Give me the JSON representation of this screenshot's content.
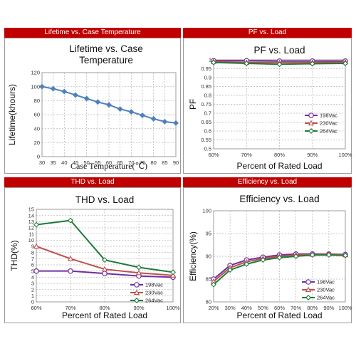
{
  "banners": {
    "lifetime": "Lifetime vs. Case Temperature",
    "pf": "PF vs. Load",
    "thd": "THD vs. Load",
    "efficiency": "Efficiency vs. Load"
  },
  "colors": {
    "banner": "#c00000",
    "s198": "#7030a0",
    "s230": "#c0504d",
    "s264": "#1e7b3a",
    "lifetime": "#4f81bd"
  },
  "chart_data": [
    {
      "id": "lifetime",
      "type": "line",
      "title_lines": [
        "Lifetime vs. Case",
        "Temperature"
      ],
      "xlabel": "Case Temperature(℃)",
      "ylabel": "Lifetime(khours)",
      "x": [
        30,
        35,
        40,
        45,
        50,
        55,
        60,
        65,
        70,
        75,
        80,
        85,
        90
      ],
      "xticks": [
        "30",
        "35",
        "40",
        "45",
        "50",
        "55",
        "60",
        "65",
        "70",
        "75",
        "80",
        "85",
        "90"
      ],
      "ylim": [
        0,
        120
      ],
      "yticks": [
        "0",
        "20",
        "40",
        "60",
        "80",
        "100",
        "120"
      ],
      "grid": true,
      "series": [
        {
          "values": [
            100,
            97,
            93,
            88,
            83,
            78,
            74,
            68,
            64,
            59,
            54,
            50,
            48
          ],
          "color": "#4f81bd",
          "marker": "diamond"
        }
      ]
    },
    {
      "id": "pf",
      "type": "line",
      "title": "PF vs. Load",
      "xlabel": "Percent of Rated Load",
      "ylabel": "PF",
      "categories": [
        "60%",
        "70%",
        "80%",
        "90%",
        "100%"
      ],
      "ylim": [
        0.5,
        1
      ],
      "yticks": [
        "0.5",
        "0.55",
        "0.6",
        "0.65",
        "0.7",
        "0.75",
        "0.8",
        "0.85",
        "0.9",
        "0.95",
        "1"
      ],
      "grid": true,
      "legend": "right",
      "series": [
        {
          "name": "198Vac",
          "values": [
            0.995,
            0.995,
            0.993,
            0.993,
            0.993
          ],
          "color": "#7030a0",
          "marker": "circle"
        },
        {
          "name": "230Vac",
          "values": [
            0.99,
            0.985,
            0.985,
            0.985,
            0.987
          ],
          "color": "#c0504d",
          "marker": "triangle"
        },
        {
          "name": "264Vac",
          "values": [
            0.985,
            0.98,
            0.975,
            0.978,
            0.98
          ],
          "color": "#1e7b3a",
          "marker": "diamond"
        }
      ]
    },
    {
      "id": "thd",
      "type": "line",
      "title": "THD vs. Load",
      "xlabel": "Percent of Rated Load",
      "ylabel": "THD(%)",
      "categories": [
        "60%",
        "70%",
        "80%",
        "90%",
        "100%"
      ],
      "ylim": [
        0,
        15
      ],
      "yticks": [
        "0",
        "1",
        "2",
        "3",
        "4",
        "5",
        "6",
        "7",
        "8",
        "9",
        "10",
        "11",
        "12",
        "13",
        "14",
        "15"
      ],
      "grid": true,
      "legend": "bottom-right",
      "series": [
        {
          "name": "198Vac",
          "values": [
            5.0,
            5.0,
            4.6,
            4.2,
            4.0
          ],
          "color": "#7030a0",
          "marker": "circle"
        },
        {
          "name": "230Vac",
          "values": [
            9.0,
            7.0,
            5.3,
            4.7,
            4.3
          ],
          "color": "#c0504d",
          "marker": "triangle"
        },
        {
          "name": "264Vac",
          "values": [
            12.5,
            13.2,
            6.8,
            5.6,
            4.8
          ],
          "color": "#1e7b3a",
          "marker": "diamond"
        }
      ]
    },
    {
      "id": "efficiency",
      "type": "line",
      "title": "Efficiency vs. Load",
      "xlabel": "Percent of Rated Load",
      "ylabel": "Efficiency(%)",
      "categories": [
        "20%",
        "30%",
        "40%",
        "50%",
        "60%",
        "70%",
        "80%",
        "90%",
        "100%"
      ],
      "ylim": [
        80,
        100
      ],
      "yticks": [
        "80",
        "85",
        "90",
        "95",
        "100"
      ],
      "grid": true,
      "legend": "right",
      "series": [
        {
          "name": "198Vac",
          "values": [
            85.0,
            88.0,
            89.2,
            89.8,
            90.3,
            90.5,
            90.5,
            90.5,
            90.4
          ],
          "color": "#7030a0",
          "marker": "circle"
        },
        {
          "name": "230Vac",
          "values": [
            84.5,
            87.5,
            88.8,
            89.5,
            90.0,
            90.3,
            90.4,
            90.5,
            90.3
          ],
          "color": "#c0504d",
          "marker": "triangle"
        },
        {
          "name": "264Vac",
          "values": [
            83.8,
            87.0,
            88.3,
            89.2,
            89.7,
            90.0,
            90.3,
            90.3,
            90.2
          ],
          "color": "#1e7b3a",
          "marker": "diamond"
        }
      ]
    }
  ]
}
